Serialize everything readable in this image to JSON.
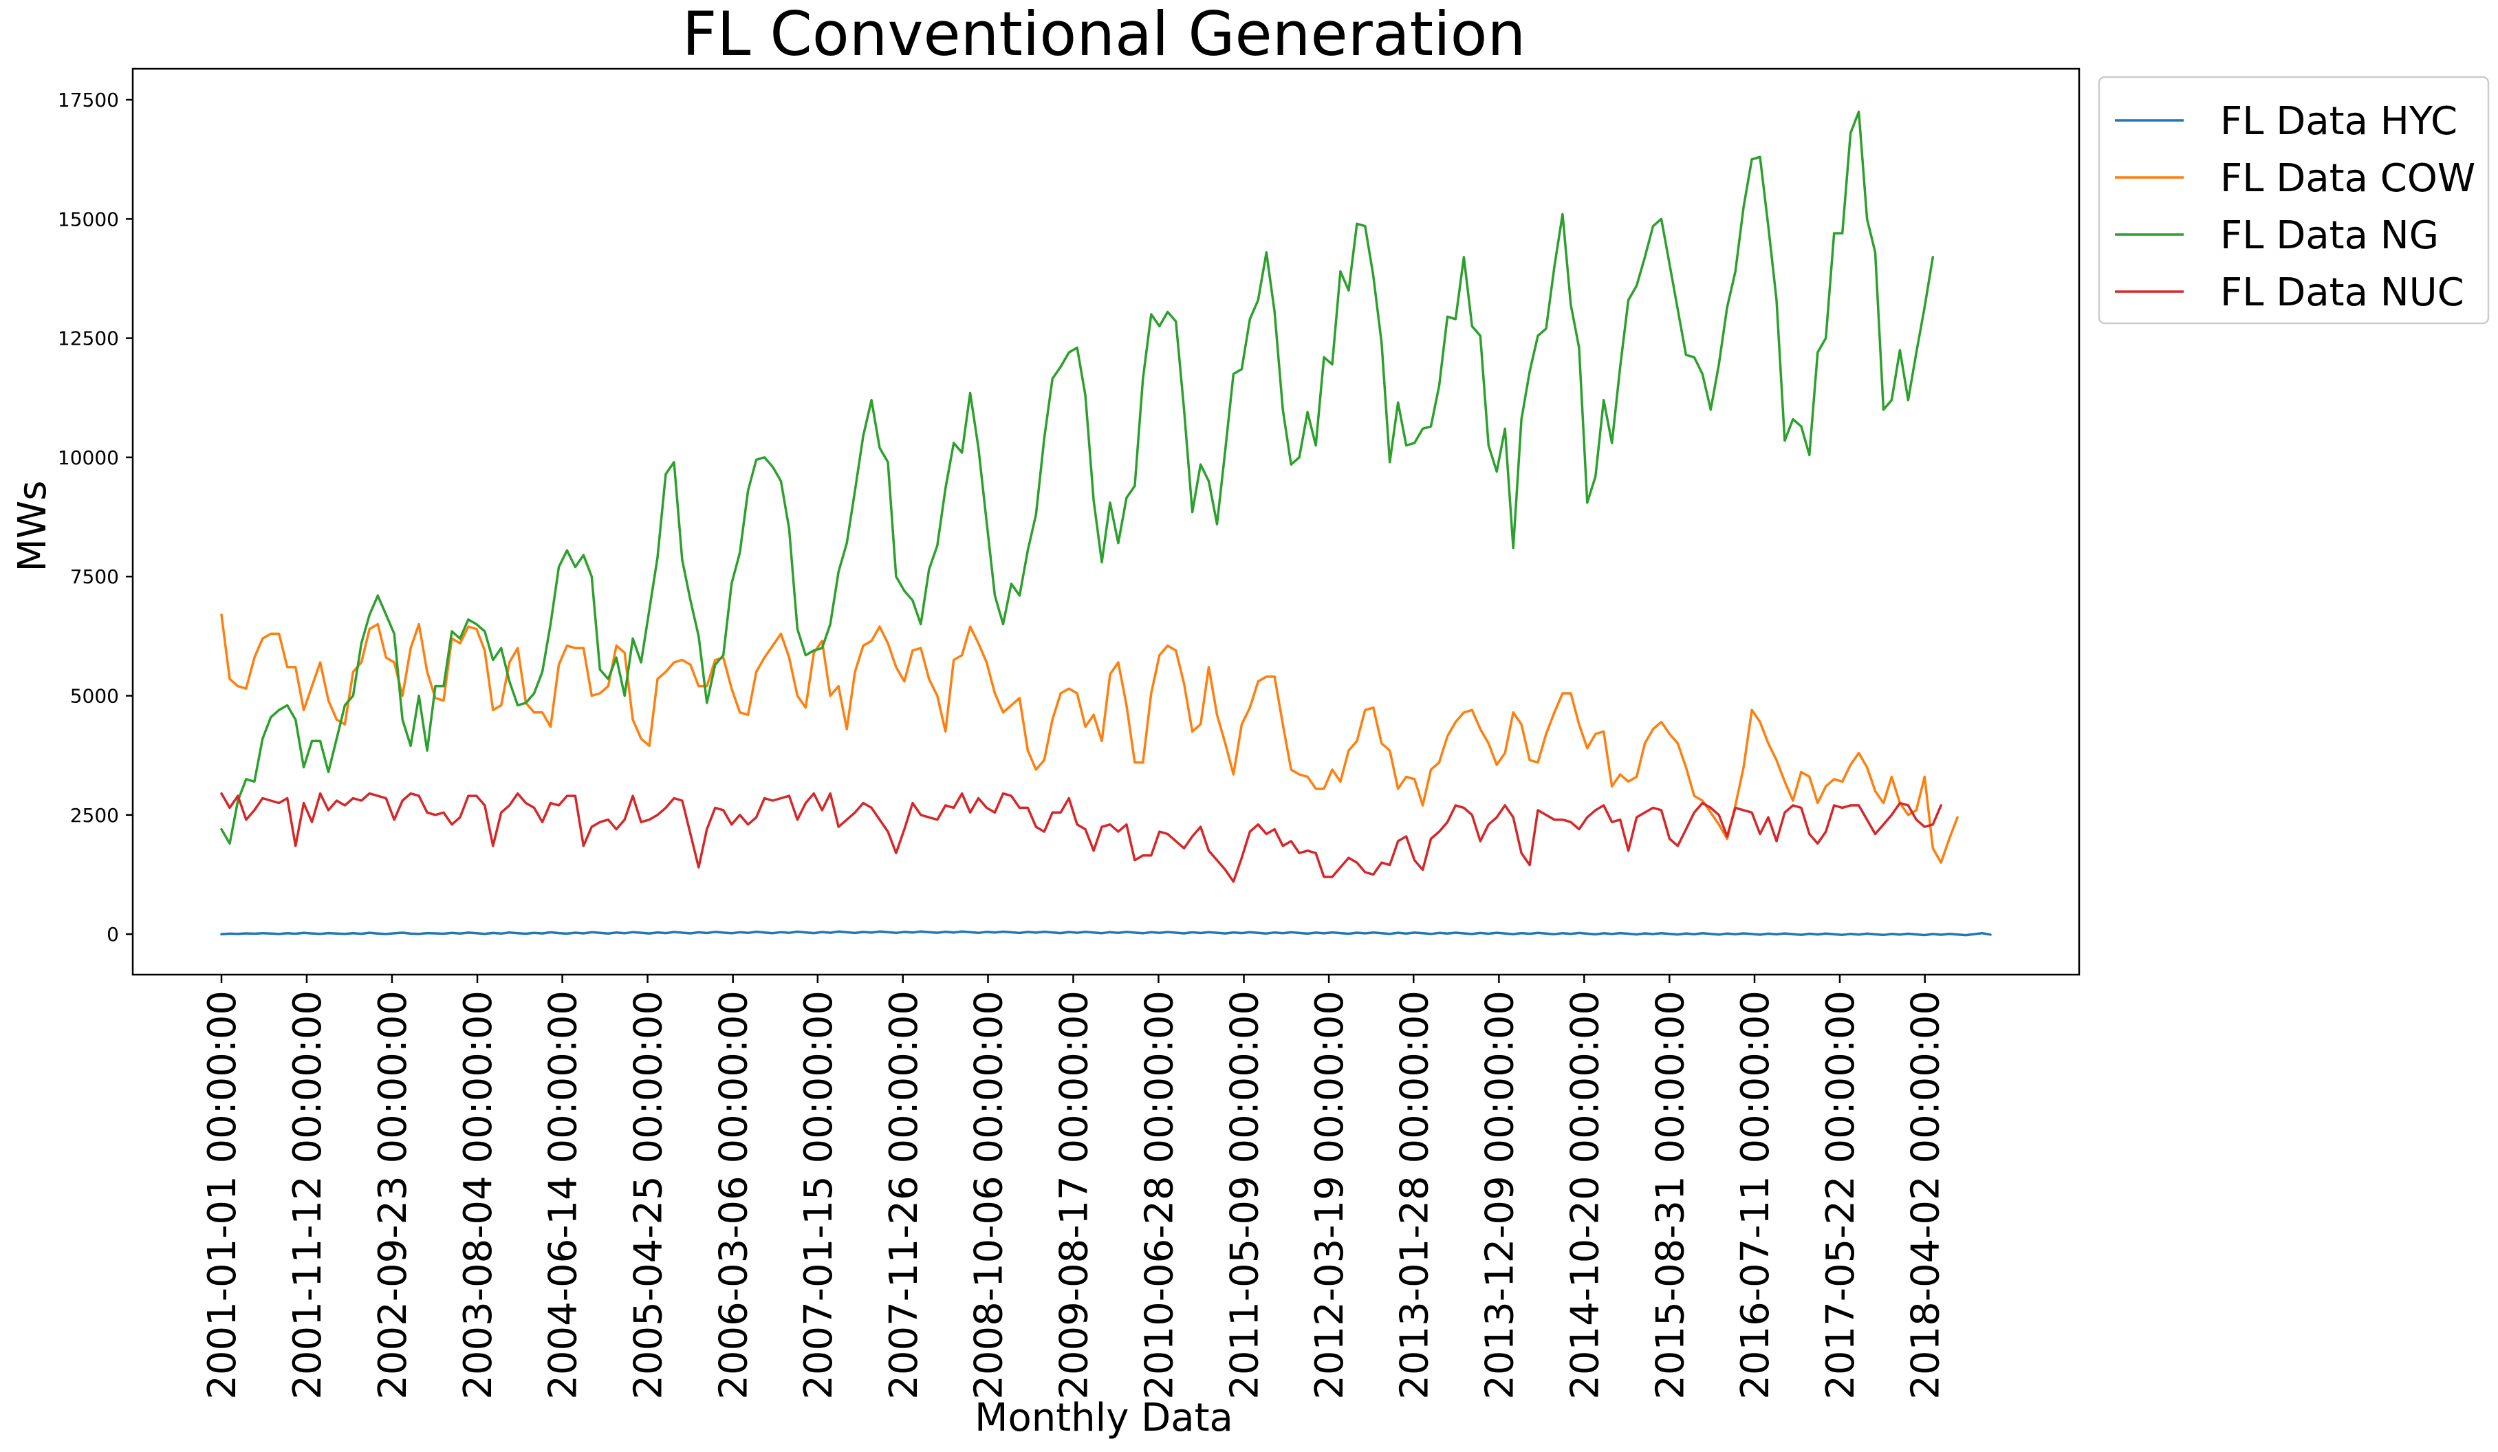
{
  "chart_data": {
    "type": "line",
    "title": "FL Conventional Generation",
    "xlabel": "Monthly Data",
    "ylabel": "MWs",
    "ylim": [
      -850,
      18150
    ],
    "yticks": [
      0,
      2500,
      5000,
      7500,
      10000,
      12500,
      15000,
      17500
    ],
    "ytick_labels": [
      "0",
      "2500",
      "5000",
      "7500",
      "10000",
      "12500",
      "15000",
      "17500"
    ],
    "x_start": "2001-01",
    "x_count": 216,
    "x_interval": "month",
    "xticks": [
      "2001-01-01 00:00:00",
      "2001-11-12 00:00:00",
      "2002-09-23 00:00:00",
      "2003-08-04 00:00:00",
      "2004-06-14 00:00:00",
      "2005-04-25 00:00:00",
      "2006-03-06 00:00:00",
      "2007-01-15 00:00:00",
      "2007-11-26 00:00:00",
      "2008-10-06 00:00:00",
      "2009-08-17 00:00:00",
      "2010-06-28 00:00:00",
      "2011-05-09 00:00:00",
      "2012-03-19 00:00:00",
      "2013-01-28 00:00:00",
      "2013-12-09 00:00:00",
      "2014-10-20 00:00:00",
      "2015-08-31 00:00:00",
      "2016-07-11 00:00:00",
      "2017-05-22 00:00:00",
      "2018-04-02 00:00:00"
    ],
    "legend_position": "outside-upper-right",
    "series": [
      {
        "name": "FL Data HYC",
        "color": "#1f77b4",
        "values": [
          0,
          10,
          5,
          15,
          8,
          20,
          12,
          3,
          18,
          9,
          25,
          14,
          6,
          22,
          11,
          4,
          19,
          7,
          28,
          13,
          2,
          17,
          30,
          10,
          5,
          21,
          15,
          8,
          26,
          12,
          32,
          18,
          6,
          24,
          11,
          35,
          20,
          9,
          27,
          14,
          38,
          22,
          10,
          30,
          16,
          40,
          25,
          12,
          33,
          19,
          42,
          28,
          14,
          36,
          21,
          45,
          30,
          16,
          38,
          23,
          48,
          32,
          18,
          40,
          25,
          50,
          34,
          20,
          42,
          27,
          52,
          36,
          22,
          44,
          29,
          54,
          38,
          24,
          46,
          31,
          55,
          40,
          26,
          48,
          33,
          56,
          42,
          28,
          50,
          35,
          54,
          40,
          26,
          48,
          33,
          52,
          38,
          24,
          46,
          31,
          50,
          36,
          22,
          44,
          29,
          48,
          34,
          20,
          42,
          27,
          46,
          32,
          18,
          40,
          25,
          44,
          30,
          16,
          38,
          23,
          42,
          28,
          14,
          36,
          21,
          40,
          26,
          12,
          34,
          19,
          38,
          24,
          10,
          32,
          17,
          36,
          22,
          8,
          30,
          15,
          34,
          20,
          6,
          28,
          13,
          32,
          18,
          4,
          26,
          11,
          30,
          16,
          2,
          24,
          9,
          28,
          14,
          0,
          22,
          7,
          26,
          12,
          -2,
          20,
          5,
          24,
          10,
          -4,
          18,
          3,
          22,
          8,
          -6,
          16,
          1,
          20,
          6,
          -8,
          14,
          -1,
          18,
          4,
          -10,
          12,
          -3,
          16,
          2,
          -12,
          10,
          -5,
          14,
          0,
          -14,
          8,
          -7,
          12,
          -2,
          -16,
          6,
          -9,
          10,
          -4,
          -18,
          4,
          -11,
          8,
          -6,
          -20,
          2,
          -13,
          6,
          -8,
          -22,
          0,
          20,
          -10
        ]
      },
      {
        "name": "FL Data COW",
        "color": "#ff7f0e",
        "values": [
          6700,
          5350,
          5200,
          5150,
          5800,
          6200,
          6300,
          6300,
          5600,
          5600,
          4700,
          5200,
          5700,
          4900,
          4500,
          4400,
          5500,
          5700,
          6400,
          6500,
          5800,
          5700,
          5000,
          6000,
          6500,
          5500,
          4950,
          4900,
          6200,
          6100,
          6450,
          6400,
          5950,
          4700,
          4800,
          5700,
          6000,
          4850,
          4650,
          4650,
          4350,
          5650,
          6050,
          6000,
          6000,
          5000,
          5050,
          5200,
          6050,
          5900,
          4500,
          4100,
          3950,
          5350,
          5500,
          5700,
          5750,
          5650,
          5200,
          5200,
          5750,
          5800,
          5150,
          4650,
          4600,
          5500,
          5800,
          6050,
          6300,
          5800,
          5000,
          4750,
          5900,
          6150,
          5000,
          5200,
          4300,
          5500,
          6050,
          6150,
          6450,
          6100,
          5600,
          5300,
          5950,
          6000,
          5350,
          5000,
          4250,
          5750,
          5850,
          6450,
          6100,
          5700,
          5050,
          4650,
          4800,
          4950,
          3850,
          3450,
          3650,
          4500,
          5050,
          5150,
          5050,
          4350,
          4600,
          4050,
          5450,
          5700,
          4800,
          3600,
          3600,
          5050,
          5850,
          6050,
          5950,
          5250,
          4250,
          4400,
          5600,
          4600,
          4000,
          3350,
          4400,
          4750,
          5300,
          5400,
          5400,
          4400,
          3450,
          3350,
          3300,
          3050,
          3050,
          3450,
          3200,
          3850,
          4050,
          4700,
          4750,
          4000,
          3850,
          3050,
          3300,
          3250,
          2700,
          3450,
          3600,
          4150,
          4450,
          4650,
          4700,
          4300,
          4000,
          3550,
          3800,
          4650,
          4400,
          3650,
          3600,
          4200,
          4650,
          5050,
          5050,
          4400,
          3900,
          4200,
          4250,
          3100,
          3350,
          3200,
          3300,
          4000,
          4300,
          4450,
          4200,
          4000,
          3500,
          2900,
          2800,
          2550,
          2300,
          2000,
          2700,
          3500,
          4700,
          4450,
          4000,
          3650,
          3200,
          2800,
          3400,
          3300,
          2750,
          3100,
          3250,
          3200,
          3550,
          3800,
          3500,
          3000,
          2750,
          3300,
          2750,
          2500,
          2600,
          3300,
          1800,
          1500,
          2000,
          2450
        ]
      },
      {
        "name": "FL Data NG",
        "color": "#2ca02c",
        "values": [
          2200,
          1900,
          2800,
          3250,
          3200,
          4100,
          4550,
          4700,
          4800,
          4500,
          3500,
          4050,
          4050,
          3400,
          4100,
          4800,
          5000,
          6100,
          6700,
          7100,
          6700,
          6300,
          4500,
          3950,
          5000,
          3850,
          5200,
          5200,
          6350,
          6200,
          6600,
          6500,
          6350,
          5750,
          6000,
          5300,
          4800,
          4850,
          5050,
          5500,
          6500,
          7700,
          8050,
          7700,
          7950,
          7500,
          5550,
          5350,
          5800,
          5000,
          6200,
          5700,
          6800,
          7900,
          9650,
          9900,
          7850,
          7000,
          6250,
          4850,
          5650,
          5850,
          7350,
          8000,
          9300,
          9950,
          10000,
          9800,
          9500,
          8500,
          6400,
          5850,
          5950,
          6000,
          6500,
          7600,
          8200,
          9300,
          10450,
          11200,
          10200,
          9900,
          7500,
          7200,
          7000,
          6500,
          7650,
          8150,
          9350,
          10300,
          10100,
          11350,
          10200,
          8650,
          7100,
          6500,
          7350,
          7100,
          8050,
          8800,
          10400,
          11650,
          11900,
          12200,
          12300,
          11300,
          9100,
          7800,
          9050,
          8200,
          9150,
          9400,
          11650,
          13000,
          12750,
          13050,
          12850,
          11000,
          8850,
          9850,
          9500,
          8600,
          10150,
          11750,
          11850,
          12900,
          13300,
          14300,
          13050,
          11000,
          9850,
          10000,
          10950,
          10250,
          12100,
          11950,
          13900,
          13500,
          14900,
          14850,
          13800,
          12400,
          9900,
          11150,
          10250,
          10300,
          10600,
          10650,
          11500,
          12950,
          12900,
          14200,
          12750,
          12550,
          10250,
          9700,
          10600,
          8100,
          10800,
          11800,
          12550,
          12700,
          14000,
          15100,
          13200,
          12300,
          9050,
          9600,
          11200,
          10300,
          11900,
          13300,
          13600,
          14200,
          14850,
          15000,
          14050,
          13100,
          12150,
          12100,
          11750,
          11000,
          11950,
          13150,
          13900,
          15250,
          16250,
          16300,
          14850,
          13300,
          10350,
          10800,
          10650,
          10050,
          12200,
          12500,
          14700,
          14700,
          16800,
          17250,
          15000,
          14300,
          11000,
          11200,
          12250,
          11200,
          12200,
          13150,
          14200
        ]
      },
      {
        "name": "FL Data NUC",
        "color": "#d62728",
        "values": [
          2950,
          2650,
          2900,
          2400,
          2600,
          2850,
          2800,
          2750,
          2850,
          1850,
          2750,
          2350,
          2950,
          2600,
          2800,
          2700,
          2850,
          2800,
          2950,
          2900,
          2850,
          2400,
          2800,
          2950,
          2900,
          2550,
          2500,
          2550,
          2300,
          2450,
          2900,
          2900,
          2700,
          1850,
          2550,
          2700,
          2950,
          2750,
          2650,
          2350,
          2750,
          2700,
          2900,
          2900,
          1850,
          2250,
          2350,
          2400,
          2200,
          2400,
          2900,
          2350,
          2400,
          2500,
          2650,
          2850,
          2800,
          2100,
          1400,
          2200,
          2650,
          2600,
          2300,
          2500,
          2300,
          2450,
          2850,
          2800,
          2850,
          2900,
          2400,
          2750,
          2950,
          2600,
          2950,
          2250,
          2400,
          2550,
          2750,
          2650,
          2400,
          2150,
          1700,
          2200,
          2750,
          2500,
          2450,
          2400,
          2700,
          2650,
          2950,
          2550,
          2850,
          2650,
          2550,
          2950,
          2900,
          2650,
          2650,
          2250,
          2150,
          2550,
          2550,
          2850,
          2300,
          2200,
          1750,
          2250,
          2300,
          2150,
          2300,
          1550,
          1650,
          1650,
          2150,
          2100,
          1950,
          1800,
          2050,
          2250,
          1750,
          1550,
          1350,
          1100,
          1600,
          2150,
          2300,
          2100,
          2200,
          1850,
          1950,
          1700,
          1750,
          1700,
          1200,
          1200,
          1400,
          1600,
          1500,
          1300,
          1250,
          1500,
          1450,
          1950,
          2050,
          1550,
          1350,
          2000,
          2150,
          2350,
          2700,
          2650,
          2500,
          1950,
          2300,
          2450,
          2700,
          2450,
          1700,
          1450,
          2600,
          2500,
          2400,
          2400,
          2350,
          2200,
          2450,
          2600,
          2700,
          2350,
          2400,
          1750,
          2450,
          2550,
          2650,
          2600,
          2000,
          1850,
          2200,
          2550,
          2750,
          2650,
          2500,
          2050,
          2650,
          2600,
          2550,
          2100,
          2450,
          1950,
          2550,
          2700,
          2650,
          2100,
          1900,
          2150,
          2700,
          2650,
          2700,
          2700,
          2400,
          2100,
          2300,
          2500,
          2750,
          2700,
          2400,
          2250,
          2300,
          2700
        ]
      }
    ]
  }
}
